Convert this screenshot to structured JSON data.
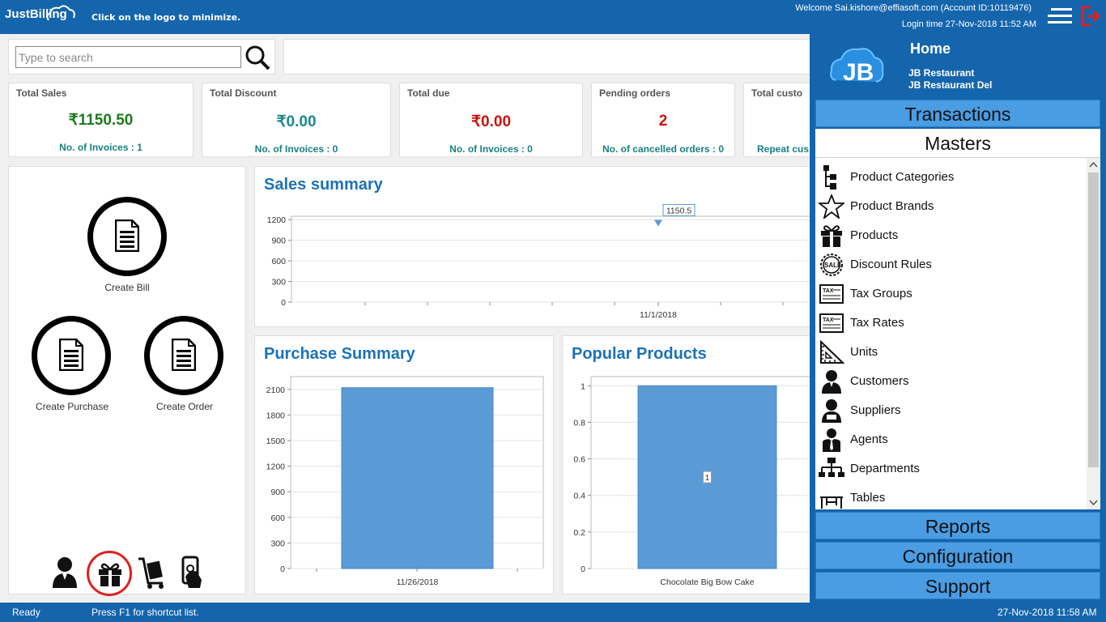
{
  "topbar": {
    "logo_text": "JustBilling",
    "hint": "Click on the logo to minimize.",
    "welcome": "Welcome Sai.kishore@effiasoft.com (Account ID:10119476)",
    "login_time": "Login time  27-Nov-2018 11:52 AM"
  },
  "search": {
    "placeholder": "Type to search"
  },
  "cards": [
    {
      "title": "Total Sales",
      "value": "₹1150.50",
      "sub": "No. of Invoices : 1",
      "color": "#1e7a1e"
    },
    {
      "title": "Total Discount",
      "value": "₹0.00",
      "sub": "No. of Invoices : 0",
      "color": "#1a8a8a"
    },
    {
      "title": "Total due",
      "value": "₹0.00",
      "sub": "No. of Invoices : 0",
      "color": "#cc1111"
    },
    {
      "title": "Pending orders",
      "value": "2",
      "sub": "No. of cancelled orders : 0",
      "color": "#cc1111"
    },
    {
      "title": "Total custo",
      "value": "",
      "sub": "Repeat cus",
      "color": "#1a8080"
    }
  ],
  "actions": {
    "create_bill": "Create Bill",
    "create_purchase": "Create Purchase",
    "create_order": "Create Order"
  },
  "bottom_icons": [
    "customer-icon",
    "gift-icon",
    "trolley-icon",
    "payment-icon"
  ],
  "sales_summary": {
    "title": "Sales summary"
  },
  "purchase_summary": {
    "title": "Purchase Summary"
  },
  "popular_products": {
    "title": "Popular Products"
  },
  "chart_data": [
    {
      "type": "line",
      "title": "Sales summary",
      "x": [
        "11/1/2018"
      ],
      "series": [
        {
          "values": [
            1150.5
          ]
        }
      ],
      "data_labels": [
        "1150.5"
      ],
      "yticks": [
        0,
        300,
        600,
        900,
        1200
      ],
      "ylim": [
        0,
        1250
      ]
    },
    {
      "type": "bar",
      "title": "Purchase Summary",
      "categories": [
        "11/26/2018"
      ],
      "values": [
        2120
      ],
      "yticks": [
        0,
        300,
        600,
        900,
        1200,
        1500,
        1800,
        2100
      ],
      "ylim": [
        0,
        2250
      ]
    },
    {
      "type": "bar",
      "title": "Popular Products",
      "categories": [
        "Chocolate Big Bow Cake"
      ],
      "values": [
        1
      ],
      "data_labels": [
        "1"
      ],
      "yticks": [
        "0",
        "0.2",
        "0.4",
        "0.6",
        "0.8",
        "1"
      ],
      "ylim": [
        0,
        1.05
      ]
    }
  ],
  "statusbar": {
    "ready": "Ready",
    "hint": "Press F1 for shortcut list.",
    "datetime": "27-Nov-2018 11:58 AM"
  },
  "side": {
    "logo": "JB",
    "home": "Home",
    "company": "JB Restaurant",
    "branch": "JB Restaurant Del",
    "sections": {
      "transactions": "Transactions",
      "masters": "Masters",
      "reports": "Reports",
      "configuration": "Configuration",
      "support": "Support"
    },
    "masters_items": [
      {
        "label": "Product Categories",
        "icon": "category-tree-icon"
      },
      {
        "label": "Product Brands",
        "icon": "star-icon"
      },
      {
        "label": "Products",
        "icon": "gift-icon"
      },
      {
        "label": "Discount Rules",
        "icon": "sale-badge-icon"
      },
      {
        "label": "Tax Groups",
        "icon": "tax-icon"
      },
      {
        "label": "Tax Rates",
        "icon": "tax-icon"
      },
      {
        "label": "Units",
        "icon": "ruler-icon"
      },
      {
        "label": "Customers",
        "icon": "customer-icon"
      },
      {
        "label": "Suppliers",
        "icon": "supplier-icon"
      },
      {
        "label": "Agents",
        "icon": "agent-icon"
      },
      {
        "label": "Departments",
        "icon": "org-chart-icon"
      },
      {
        "label": "Tables",
        "icon": "table-icon"
      }
    ]
  }
}
